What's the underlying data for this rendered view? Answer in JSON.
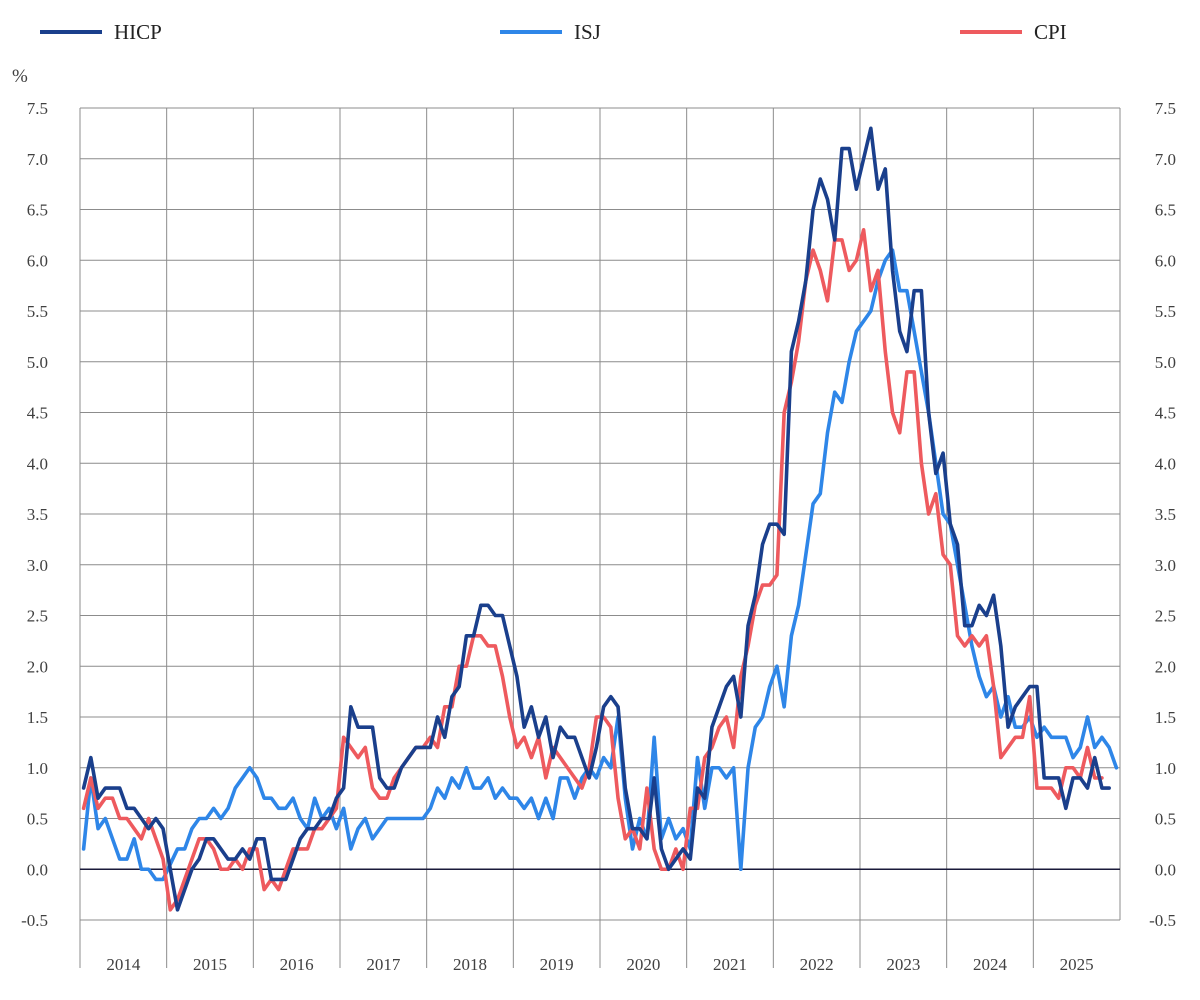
{
  "chart_data": {
    "type": "line",
    "unit_label": "%",
    "ylim": [
      -0.5,
      7.5
    ],
    "y_ticks": [
      "7.5",
      "7.0",
      "6.5",
      "6.0",
      "5.5",
      "5.0",
      "4.5",
      "4.0",
      "3.5",
      "3.0",
      "2.5",
      "2.0",
      "1.5",
      "1.0",
      "0.5",
      "0.0",
      "-0.5"
    ],
    "grid": true,
    "legend_position": "top",
    "years": [
      "2014",
      "2015",
      "2016",
      "2017",
      "2018",
      "2019",
      "2020",
      "2021",
      "2022",
      "2023",
      "2024",
      "2025"
    ],
    "x_start": "2014-01",
    "series": [
      {
        "name": "HICP",
        "color": "#1a3f8c",
        "values": [
          0.8,
          1.1,
          0.7,
          0.8,
          0.8,
          0.8,
          0.6,
          0.6,
          0.5,
          0.4,
          0.5,
          0.4,
          0.0,
          -0.4,
          -0.2,
          0.0,
          0.1,
          0.3,
          0.3,
          0.2,
          0.1,
          0.1,
          0.2,
          0.1,
          0.3,
          0.3,
          -0.1,
          -0.1,
          -0.1,
          0.1,
          0.3,
          0.4,
          0.4,
          0.5,
          0.5,
          0.7,
          0.8,
          1.6,
          1.4,
          1.4,
          1.4,
          0.9,
          0.8,
          0.8,
          1.0,
          1.1,
          1.2,
          1.2,
          1.2,
          1.5,
          1.3,
          1.7,
          1.8,
          2.3,
          2.3,
          2.6,
          2.6,
          2.5,
          2.5,
          2.2,
          1.9,
          1.4,
          1.6,
          1.3,
          1.5,
          1.1,
          1.4,
          1.3,
          1.3,
          1.1,
          0.9,
          1.2,
          1.6,
          1.7,
          1.6,
          0.8,
          0.4,
          0.4,
          0.3,
          0.9,
          0.2,
          0.0,
          0.1,
          0.2,
          0.1,
          0.8,
          0.7,
          1.4,
          1.6,
          1.8,
          1.9,
          1.5,
          2.4,
          2.7,
          3.2,
          3.4,
          3.4,
          3.3,
          5.1,
          5.4,
          5.8,
          6.5,
          6.8,
          6.6,
          6.2,
          7.1,
          7.1,
          6.7,
          7.0,
          7.3,
          6.7,
          6.9,
          5.9,
          5.3,
          5.1,
          5.7,
          5.7,
          4.5,
          3.9,
          4.1,
          3.4,
          3.2,
          2.4,
          2.4,
          2.6,
          2.5,
          2.7,
          2.2,
          1.4,
          1.6,
          1.7,
          1.8,
          1.8,
          0.9,
          0.9,
          0.9,
          0.6,
          0.9,
          0.9,
          0.8,
          1.1,
          0.8,
          0.8
        ]
      },
      {
        "name": "ISJ",
        "color": "#2e86e8",
        "values": [
          0.2,
          0.9,
          0.4,
          0.5,
          0.3,
          0.1,
          0.1,
          0.3,
          0.0,
          0.0,
          -0.1,
          -0.1,
          0.05,
          0.2,
          0.2,
          0.4,
          0.5,
          0.5,
          0.6,
          0.5,
          0.6,
          0.8,
          0.9,
          1.0,
          0.9,
          0.7,
          0.7,
          0.6,
          0.6,
          0.7,
          0.5,
          0.4,
          0.7,
          0.5,
          0.6,
          0.4,
          0.6,
          0.2,
          0.4,
          0.5,
          0.3,
          0.4,
          0.5,
          0.5,
          0.5,
          0.5,
          0.5,
          0.5,
          0.6,
          0.8,
          0.7,
          0.9,
          0.8,
          1.0,
          0.8,
          0.8,
          0.9,
          0.7,
          0.8,
          0.7,
          0.7,
          0.6,
          0.7,
          0.5,
          0.7,
          0.5,
          0.9,
          0.9,
          0.7,
          0.9,
          1.0,
          0.9,
          1.1,
          1.0,
          1.5,
          0.7,
          0.2,
          0.5,
          0.3,
          1.3,
          0.3,
          0.5,
          0.3,
          0.4,
          0.2,
          1.1,
          0.6,
          1.0,
          1.0,
          0.9,
          1.0,
          0.0,
          1.0,
          1.4,
          1.5,
          1.8,
          2.0,
          1.6,
          2.3,
          2.6,
          3.1,
          3.6,
          3.7,
          4.3,
          4.7,
          4.6,
          5.0,
          5.3,
          5.4,
          5.5,
          5.8,
          6.0,
          6.1,
          5.7,
          5.7,
          5.3,
          4.9,
          4.5,
          4.0,
          3.5,
          3.4,
          3.0,
          2.6,
          2.2,
          1.9,
          1.7,
          1.8,
          1.5,
          1.7,
          1.4,
          1.4,
          1.5,
          1.3,
          1.4,
          1.3,
          1.3,
          1.3,
          1.1,
          1.2,
          1.5,
          1.2,
          1.3,
          1.2,
          1.0
        ]
      },
      {
        "name": "CPI",
        "color": "#ee5a5e",
        "values": [
          0.6,
          0.9,
          0.6,
          0.7,
          0.7,
          0.5,
          0.5,
          0.4,
          0.3,
          0.5,
          0.3,
          0.1,
          -0.4,
          -0.3,
          -0.1,
          0.1,
          0.3,
          0.3,
          0.2,
          0.0,
          0.0,
          0.1,
          0.0,
          0.2,
          0.2,
          -0.2,
          -0.1,
          -0.2,
          0.0,
          0.2,
          0.2,
          0.2,
          0.4,
          0.4,
          0.5,
          0.6,
          1.3,
          1.2,
          1.1,
          1.2,
          0.8,
          0.7,
          0.7,
          0.9,
          1.0,
          1.1,
          1.2,
          1.2,
          1.3,
          1.2,
          1.6,
          1.6,
          2.0,
          2.0,
          2.3,
          2.3,
          2.2,
          2.2,
          1.9,
          1.5,
          1.2,
          1.3,
          1.1,
          1.3,
          0.9,
          1.2,
          1.1,
          1.0,
          0.9,
          0.8,
          1.0,
          1.5,
          1.5,
          1.4,
          0.7,
          0.3,
          0.4,
          0.2,
          0.8,
          0.2,
          0.0,
          0.0,
          0.2,
          0.0,
          0.6,
          0.6,
          1.1,
          1.2,
          1.4,
          1.5,
          1.2,
          1.9,
          2.2,
          2.6,
          2.8,
          2.8,
          2.9,
          4.5,
          4.8,
          5.2,
          5.8,
          6.1,
          5.9,
          5.6,
          6.2,
          6.2,
          5.9,
          6.0,
          6.3,
          5.7,
          5.9,
          5.1,
          4.5,
          4.3,
          4.9,
          4.9,
          4.0,
          3.5,
          3.7,
          3.1,
          3.0,
          2.3,
          2.2,
          2.3,
          2.2,
          2.3,
          1.8,
          1.1,
          1.2,
          1.3,
          1.3,
          1.7,
          0.8,
          0.8,
          0.8,
          0.7,
          1.0,
          1.0,
          0.9,
          1.2,
          0.9,
          0.9
        ]
      }
    ]
  }
}
